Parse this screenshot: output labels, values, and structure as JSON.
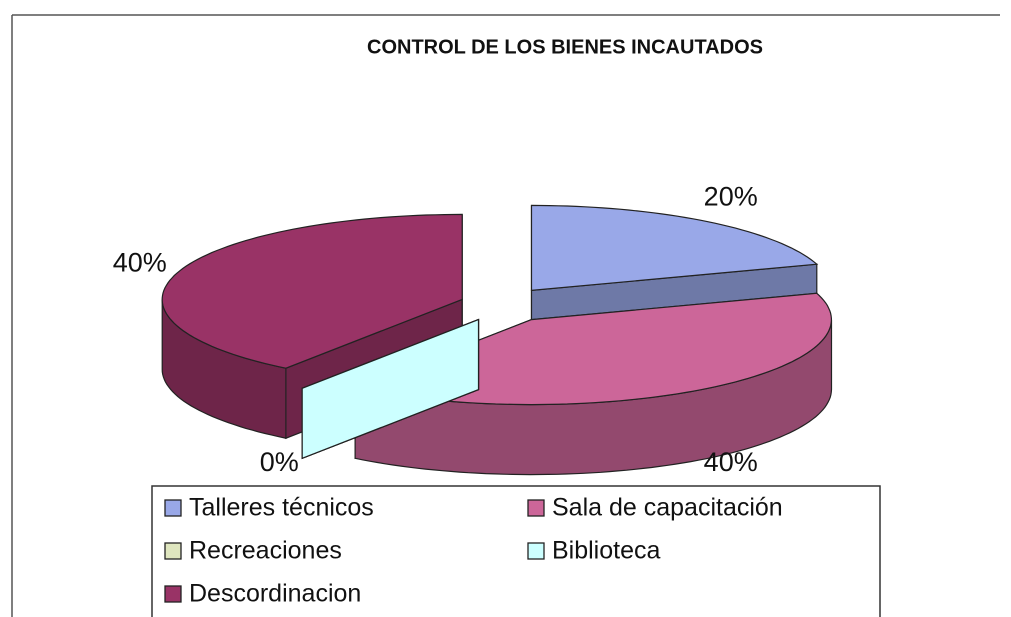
{
  "chart_data": {
    "type": "pie",
    "title": "CONTROL DE LOS BIENES INCAUTADOS",
    "categories": [
      "Talleres técnicos",
      "Sala de capacitación",
      "Recreaciones",
      "Biblioteca",
      "Descordinacion"
    ],
    "series": [
      {
        "values": [
          20,
          40,
          0,
          0,
          40
        ],
        "value_labels": [
          "20%",
          "40%",
          "0%",
          null,
          "40%"
        ],
        "colors": [
          "#99a8e8",
          "#cc6699",
          "#dfe6bf",
          "#ccffff",
          "#993366"
        ]
      }
    ],
    "legend": "bottom"
  }
}
